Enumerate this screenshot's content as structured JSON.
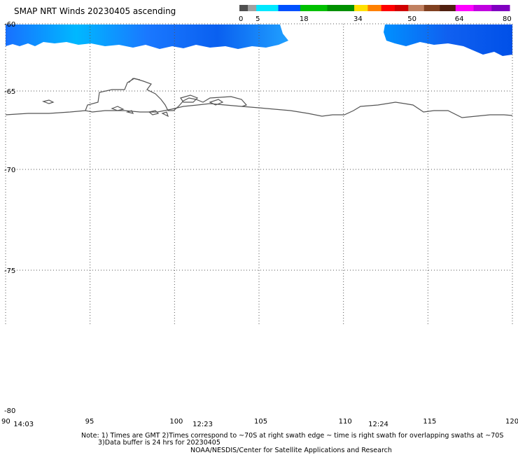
{
  "title": "SMAP NRT Winds 20230405 ascending",
  "colorbar": {
    "labels": [
      "0",
      "5",
      "18",
      "34",
      "50",
      "64",
      "80"
    ],
    "label_values": [
      0,
      5,
      18,
      34,
      50,
      64,
      80
    ],
    "segments": [
      {
        "from": 0,
        "to": 5,
        "colors": [
          "#505050",
          "#a0a0a0"
        ]
      },
      {
        "from": 5,
        "to": 18,
        "colors": [
          "#00e8ff",
          "#0050ff"
        ]
      },
      {
        "from": 18,
        "to": 34,
        "colors": [
          "#00c000",
          "#009000"
        ]
      },
      {
        "from": 34,
        "to": 50,
        "colors": [
          "#ffe000",
          "#ff8000",
          "#ff0000",
          "#d00000"
        ]
      },
      {
        "from": 50,
        "to": 64,
        "colors": [
          "#c08060",
          "#804020",
          "#502010"
        ]
      },
      {
        "from": 64,
        "to": 80,
        "colors": [
          "#ff00ff",
          "#c000e0",
          "#8000c0"
        ]
      }
    ]
  },
  "lat_labels": [
    {
      "lat": -60,
      "text": "-60"
    },
    {
      "lat": -65,
      "text": "-65"
    },
    {
      "lat": -70,
      "text": "-70"
    },
    {
      "lat": -75,
      "text": "-75"
    },
    {
      "lat": -80,
      "text": "-80"
    }
  ],
  "lon_labels": [
    {
      "lon": 90,
      "text": "90"
    },
    {
      "lon": 95,
      "text": "95"
    },
    {
      "lon": 100,
      "text": "100"
    },
    {
      "lon": 105,
      "text": "105"
    },
    {
      "lon": 110,
      "text": "110"
    },
    {
      "lon": 115,
      "text": "115"
    },
    {
      "lon": 120,
      "text": "120"
    }
  ],
  "swath_times": [
    {
      "lon": 90.8,
      "text": "14:03"
    },
    {
      "lon": 101.4,
      "text": "12:23"
    },
    {
      "lon": 111.8,
      "text": "12:24"
    }
  ],
  "notes": {
    "line1": "Note: 1) Times are GMT 2)Times correspond to ~70S at right swath edge ~ time is right swath for overlapping swaths at ~70S",
    "line2": "3)Data buffer is 24 hrs for 20230405",
    "line3": "NOAA/NESDIS/Center for Satellite Applications and Research"
  },
  "colors": {
    "wind_low": "#00bfff",
    "wind_mid": "#1a6cff",
    "wind_high": "#0040e0",
    "coastline": "#555555",
    "grid": "#555555"
  }
}
